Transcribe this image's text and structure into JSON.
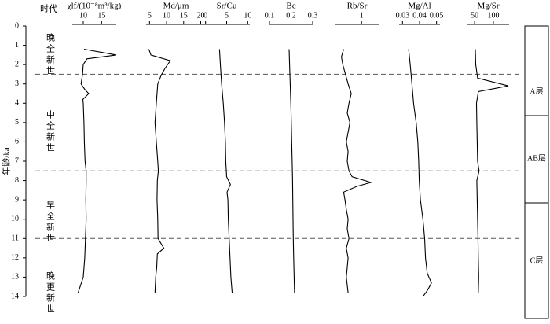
{
  "chart_data": {
    "type": "profile",
    "header": "时代",
    "y_label": "年龄/ka",
    "ylim": [
      0,
      14
    ],
    "yticks": [
      0,
      1,
      2,
      3,
      4,
      5,
      6,
      7,
      8,
      9,
      10,
      11,
      12,
      13,
      14
    ],
    "epochs": [
      "晚全新世",
      "中全新世",
      "早全新世",
      "晚更新世"
    ],
    "dashed_ages": [
      2.5,
      7.5,
      11
    ],
    "layers": [
      "A层",
      "AB层",
      "C层"
    ],
    "panels": [
      {
        "label": "χlf/(10⁻⁸m³/kg)",
        "xlim": [
          7,
          19
        ],
        "xticks": [
          10,
          15
        ],
        "color": "#000000",
        "ages": [
          1.2,
          1.5,
          1.7,
          2.0,
          2.5,
          3.0,
          3.3,
          3.5,
          3.8,
          4.0,
          5,
          6,
          7,
          7.5,
          8,
          9,
          10,
          11,
          12,
          13,
          13.8
        ],
        "values": [
          10.2,
          19,
          11,
          10,
          9.8,
          9.4,
          10.5,
          11.5,
          9.9,
          10,
          10.2,
          10.3,
          10.5,
          10.8,
          10.8,
          10.7,
          10.8,
          10.6,
          10.4,
          10,
          8.6
        ]
      },
      {
        "label": "Md/μm",
        "xlim": [
          4,
          21.5
        ],
        "xticks": [
          5,
          10,
          15,
          20
        ],
        "color": "#000000",
        "ages": [
          1.2,
          1.5,
          1.8,
          2.2,
          2.6,
          3.0,
          4,
          5,
          6,
          7,
          7.5,
          8,
          9,
          10,
          11,
          11.5,
          11.8,
          12.5,
          13,
          13.8
        ],
        "values": [
          4.8,
          5.4,
          11.1,
          9.5,
          8.3,
          7.4,
          7,
          6.6,
          7,
          7.4,
          7.6,
          7.3,
          7.2,
          7.4,
          7.5,
          9.2,
          7.3,
          7.1,
          6.8,
          6.6
        ]
      },
      {
        "label": "Sr/Cu",
        "xlim": [
          -0.5,
          10.5
        ],
        "xticks": [
          0,
          5,
          10
        ],
        "color": "#000000",
        "ages": [
          1.2,
          2,
          3,
          4,
          5,
          6,
          7,
          7.8,
          8.2,
          8.6,
          9,
          10,
          11,
          12,
          13,
          13.8
        ],
        "values": [
          3.3,
          3.5,
          3.8,
          4.2,
          4.5,
          4.7,
          4.8,
          5.0,
          5.9,
          5.1,
          5.3,
          5.4,
          5.6,
          5.8,
          6.0,
          6.3
        ]
      },
      {
        "label": "Bc",
        "xlim": [
          0.1,
          0.3
        ],
        "xticks": [
          0.1,
          0.2,
          0.3
        ],
        "color": "#000000",
        "ages": [
          1.2,
          2,
          3,
          4,
          5,
          6,
          7,
          8,
          9,
          10,
          11,
          12,
          13,
          13.8
        ],
        "values": [
          0.191,
          0.193,
          0.196,
          0.199,
          0.201,
          0.203,
          0.205,
          0.207,
          0.208,
          0.209,
          0.21,
          0.212,
          0.214,
          0.216
        ]
      },
      {
        "label": "Rb/Sr",
        "xlim": [
          0.4,
          1.4
        ],
        "xticks": [
          1.0
        ],
        "color": "#000000",
        "ages": [
          1.2,
          1.6,
          2,
          2.5,
          3,
          3.5,
          4,
          4.5,
          5,
          5.5,
          6,
          6.5,
          7,
          7.5,
          7.8,
          8.1,
          8.3,
          8.6,
          9,
          9.5,
          10,
          10.5,
          11,
          11.5,
          12,
          12.5,
          13,
          13.8
        ],
        "values": [
          0.6,
          0.55,
          0.58,
          0.64,
          0.7,
          0.77,
          0.72,
          0.68,
          0.74,
          0.7,
          0.66,
          0.7,
          0.68,
          0.72,
          0.79,
          1.21,
          0.9,
          0.6,
          0.63,
          0.66,
          0.7,
          0.68,
          0.72,
          0.66,
          0.7,
          0.68,
          0.66,
          0.7
        ]
      },
      {
        "label": "Mg/Al",
        "xlim": [
          0.028,
          0.052
        ],
        "xticks": [
          0.03,
          0.04,
          0.05
        ],
        "color": "#000000",
        "ages": [
          1.2,
          2,
          3,
          4,
          5,
          6,
          7,
          8,
          9,
          10,
          11,
          12,
          12.8,
          13.3,
          13.7,
          14
        ],
        "values": [
          0.0336,
          0.0345,
          0.0355,
          0.0365,
          0.038,
          0.039,
          0.0395,
          0.0398,
          0.0405,
          0.042,
          0.043,
          0.0435,
          0.0445,
          0.047,
          0.0445,
          0.042
        ]
      },
      {
        "label": "Mg/Sr",
        "xlim": [
          31,
          142
        ],
        "xticks": [
          50,
          100
        ],
        "color": "#000000",
        "ages": [
          1.2,
          2,
          2.7,
          3.1,
          3.4,
          4,
          5,
          6,
          7,
          7.5,
          8,
          9,
          10,
          11,
          12,
          13,
          13.8
        ],
        "values": [
          52,
          53,
          58,
          140,
          60,
          55,
          56,
          57,
          58,
          62,
          56,
          57,
          58,
          59,
          60,
          61,
          60
        ]
      }
    ]
  }
}
